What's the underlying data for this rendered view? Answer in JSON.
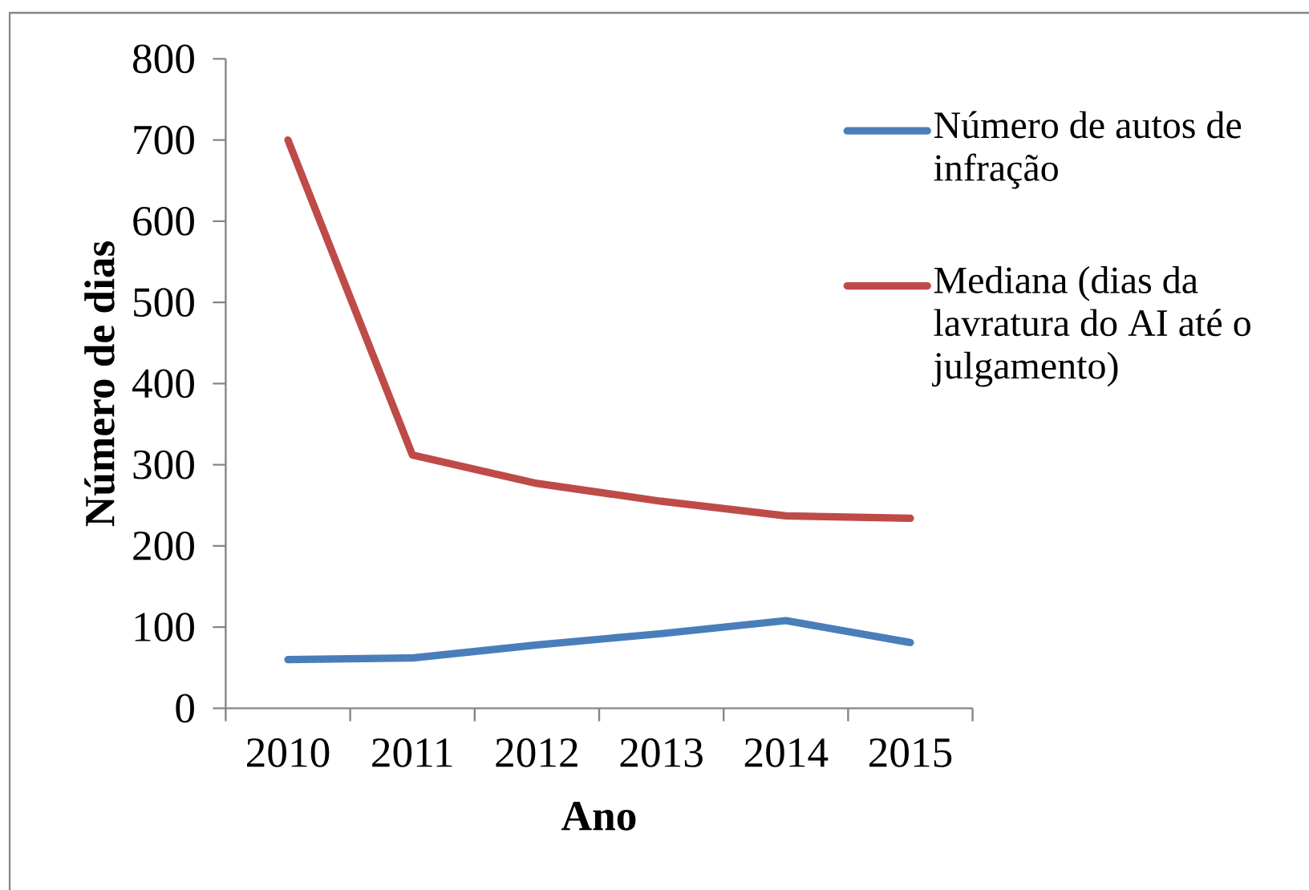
{
  "chart_data": {
    "type": "line",
    "xlabel": "Ano",
    "ylabel": "Número de dias",
    "categories": [
      "2010",
      "2011",
      "2012",
      "2013",
      "2014",
      "2015"
    ],
    "series": [
      {
        "name": "Número de autos de infração",
        "color": "#4a7ebb",
        "values": [
          60,
          62,
          78,
          92,
          108,
          81
        ]
      },
      {
        "name": "Mediana (dias da lavratura do AI até o julgamento)",
        "color": "#be4b48",
        "values": [
          700,
          312,
          277,
          255,
          237,
          234
        ]
      }
    ],
    "ylim": [
      0,
      800
    ],
    "yticks": [
      0,
      100,
      200,
      300,
      400,
      500,
      600,
      700,
      800
    ],
    "legend": "top right",
    "marker": "none",
    "line_style": "solid"
  }
}
